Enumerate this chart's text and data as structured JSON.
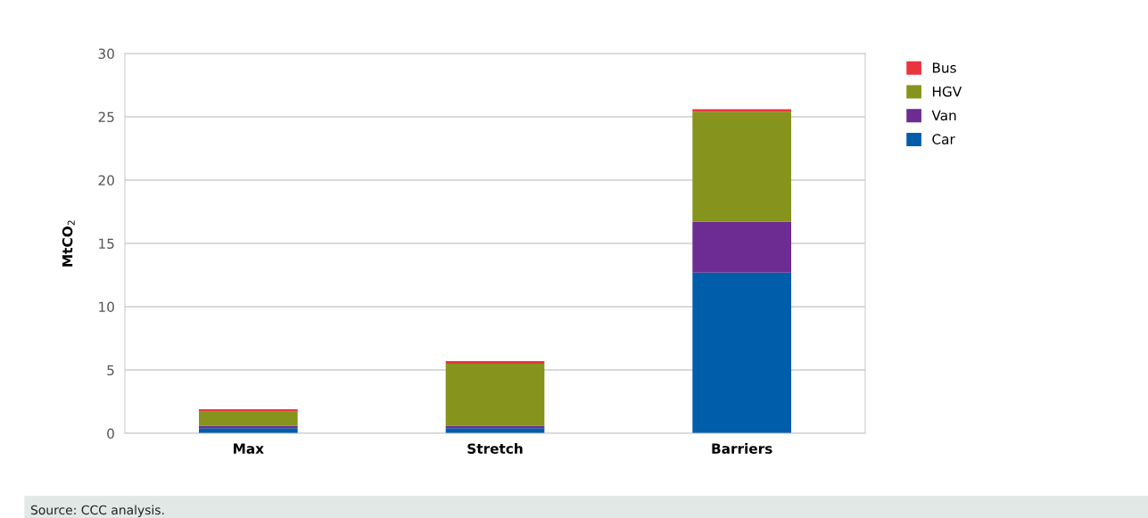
{
  "chart_data": {
    "type": "bar",
    "stacked": true,
    "ylabel": "MtCO$_{2}$",
    "categories": [
      "Max",
      "Stretch",
      "Barriers"
    ],
    "series": [
      {
        "name": "Car",
        "color": "#005daa",
        "values": [
          0.4,
          0.4,
          12.7
        ]
      },
      {
        "name": "Van",
        "color": "#6c2c91",
        "values": [
          0.2,
          0.2,
          4.0
        ]
      },
      {
        "name": "HGV",
        "color": "#86931c",
        "values": [
          1.1,
          4.9,
          8.7
        ]
      },
      {
        "name": "Bus",
        "color": "#e93540",
        "values": [
          0.2,
          0.2,
          0.2
        ]
      }
    ],
    "ylim": [
      0,
      30
    ],
    "yticks": [
      0,
      5,
      10,
      15,
      20,
      25,
      30
    ],
    "grid": "y",
    "legend": "top right",
    "annotations": [
      "Source: CCC analysis."
    ]
  }
}
